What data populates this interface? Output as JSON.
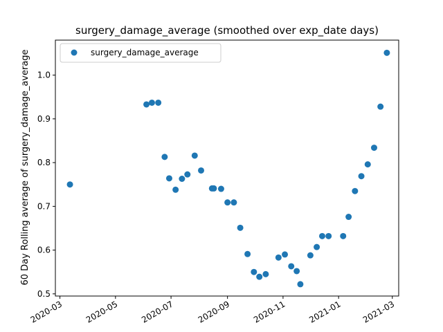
{
  "chart_data": {
    "type": "scatter",
    "title": "surgery_damage_average (smoothed over exp_date days)",
    "xlabel": "",
    "ylabel": "60 Day Rolling average of surgery_damage_average",
    "xlim": [
      "2020-02-25",
      "2021-03-08"
    ],
    "ylim": [
      0.495,
      1.08
    ],
    "xticks": [
      "2020-03",
      "2020-05",
      "2020-07",
      "2020-09",
      "2020-11",
      "2021-01",
      "2021-03"
    ],
    "xtick_dates": [
      "2020-03-01",
      "2020-05-01",
      "2020-07-01",
      "2020-09-01",
      "2020-11-01",
      "2021-01-01",
      "2021-03-01"
    ],
    "yticks": [
      "0.5",
      "0.6",
      "0.7",
      "0.8",
      "0.9",
      "1.0"
    ],
    "ytick_values": [
      0.5,
      0.6,
      0.7,
      0.8,
      0.9,
      1.0
    ],
    "legend": {
      "position": "upper-left",
      "label": "surgery_damage_average"
    },
    "color": "#1f77b4",
    "series": [
      {
        "name": "surgery_damage_average",
        "points": [
          {
            "x": "2020-03-12",
            "y": 0.75
          },
          {
            "x": "2020-06-04",
            "y": 0.933
          },
          {
            "x": "2020-06-10",
            "y": 0.937
          },
          {
            "x": "2020-06-17",
            "y": 0.937
          },
          {
            "x": "2020-06-24",
            "y": 0.813
          },
          {
            "x": "2020-06-29",
            "y": 0.764
          },
          {
            "x": "2020-07-06",
            "y": 0.738
          },
          {
            "x": "2020-07-13",
            "y": 0.763
          },
          {
            "x": "2020-07-19",
            "y": 0.773
          },
          {
            "x": "2020-07-27",
            "y": 0.816
          },
          {
            "x": "2020-08-03",
            "y": 0.782
          },
          {
            "x": "2020-08-15",
            "y": 0.741
          },
          {
            "x": "2020-08-17",
            "y": 0.741
          },
          {
            "x": "2020-08-25",
            "y": 0.74
          },
          {
            "x": "2020-09-01",
            "y": 0.709
          },
          {
            "x": "2020-09-08",
            "y": 0.709
          },
          {
            "x": "2020-09-15",
            "y": 0.651
          },
          {
            "x": "2020-09-23",
            "y": 0.591
          },
          {
            "x": "2020-09-30",
            "y": 0.55
          },
          {
            "x": "2020-10-06",
            "y": 0.539
          },
          {
            "x": "2020-10-13",
            "y": 0.545
          },
          {
            "x": "2020-10-27",
            "y": 0.583
          },
          {
            "x": "2020-11-03",
            "y": 0.59
          },
          {
            "x": "2020-11-10",
            "y": 0.563
          },
          {
            "x": "2020-11-16",
            "y": 0.552
          },
          {
            "x": "2020-11-20",
            "y": 0.522
          },
          {
            "x": "2020-12-01",
            "y": 0.588
          },
          {
            "x": "2020-12-08",
            "y": 0.607
          },
          {
            "x": "2020-12-14",
            "y": 0.632
          },
          {
            "x": "2020-12-21",
            "y": 0.632
          },
          {
            "x": "2021-01-06",
            "y": 0.632
          },
          {
            "x": "2021-01-12",
            "y": 0.676
          },
          {
            "x": "2021-01-19",
            "y": 0.735
          },
          {
            "x": "2021-01-26",
            "y": 0.769
          },
          {
            "x": "2021-02-02",
            "y": 0.796
          },
          {
            "x": "2021-02-09",
            "y": 0.834
          },
          {
            "x": "2021-02-16",
            "y": 0.928
          },
          {
            "x": "2021-02-23",
            "y": 1.051
          }
        ]
      }
    ]
  }
}
